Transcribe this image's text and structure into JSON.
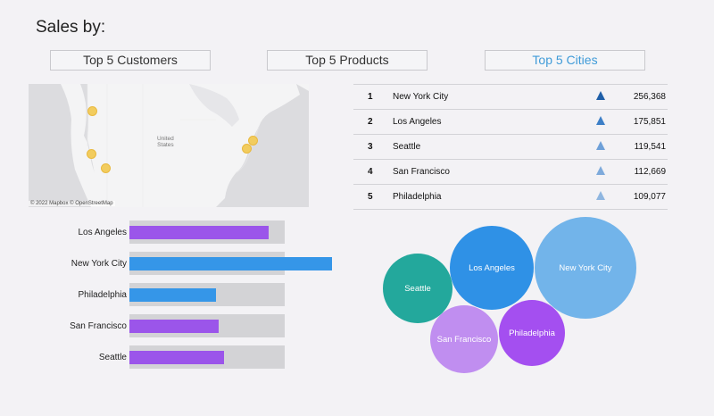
{
  "page": {
    "title": "Sales by:"
  },
  "tabs": [
    {
      "label": "Top 5 Customers",
      "active": false
    },
    {
      "label": "Top 5 Products",
      "active": false
    },
    {
      "label": "Top 5 Cities",
      "active": true
    }
  ],
  "map": {
    "country_label": "United\nStates",
    "copyright": "© 2022 Mapbox © OpenStreetMap",
    "marker_color": "#f2cc5e"
  },
  "table": {
    "rows": [
      {
        "rank": "1",
        "city": "New York City",
        "sales": "256,368",
        "indicator_color": "#1f5fa8"
      },
      {
        "rank": "2",
        "city": "Los Angeles",
        "sales": "175,851",
        "indicator_color": "#3d7fc7"
      },
      {
        "rank": "3",
        "city": "Seattle",
        "sales": "119,541",
        "indicator_color": "#6ea0d8"
      },
      {
        "rank": "4",
        "city": "San Francisco",
        "sales": "112,669",
        "indicator_color": "#7eaadb"
      },
      {
        "rank": "5",
        "city": "Philadelphia",
        "sales": "109,077",
        "indicator_color": "#8fb6e0"
      }
    ]
  },
  "chart_data": [
    {
      "type": "bar",
      "orientation": "horizontal",
      "categories": [
        "Los Angeles",
        "New York City",
        "Philadelphia",
        "San Francisco",
        "Seattle"
      ],
      "values": [
        175851,
        256368,
        109077,
        112669,
        119541
      ],
      "reference_value": 196000,
      "colors": [
        "#9b55ea",
        "#3596e8",
        "#3596e8",
        "#9b55ea",
        "#9b55ea"
      ],
      "reference_color": "#d3d3d6"
    },
    {
      "type": "bubble",
      "categories": [
        "New York City",
        "Los Angeles",
        "Seattle",
        "San Francisco",
        "Philadelphia"
      ],
      "values": [
        256368,
        175851,
        119541,
        112669,
        109077
      ],
      "colors": [
        "#72b4ea",
        "#2f91e6",
        "#23a89c",
        "#c08ef0",
        "#a44ff0"
      ]
    }
  ]
}
